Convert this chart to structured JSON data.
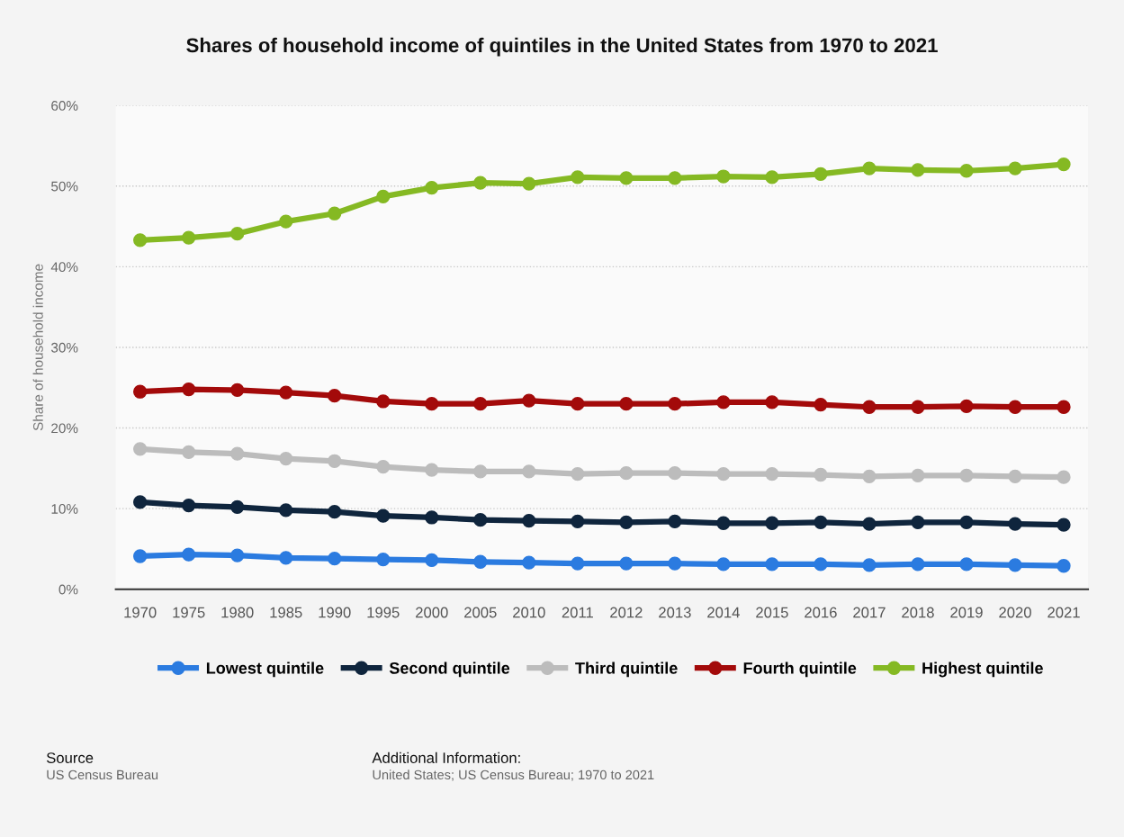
{
  "chart_data": {
    "type": "line",
    "title": "Shares of household income of quintiles in the United States from 1970 to 2021",
    "ylabel": "Share of household income",
    "categories": [
      "1970",
      "1975",
      "1980",
      "1985",
      "1990",
      "1995",
      "2000",
      "2005",
      "2010",
      "2011",
      "2012",
      "2013",
      "2014",
      "2015",
      "2016",
      "2017",
      "2018",
      "2019",
      "2020",
      "2021"
    ],
    "series": [
      {
        "name": "Lowest quintile",
        "color": "#2b7be0",
        "values": [
          4.1,
          4.3,
          4.2,
          3.9,
          3.8,
          3.7,
          3.6,
          3.4,
          3.3,
          3.2,
          3.2,
          3.2,
          3.1,
          3.1,
          3.1,
          3.0,
          3.1,
          3.1,
          3.0,
          2.9
        ]
      },
      {
        "name": "Second quintile",
        "color": "#0f253d",
        "values": [
          10.8,
          10.4,
          10.2,
          9.8,
          9.6,
          9.1,
          8.9,
          8.6,
          8.5,
          8.4,
          8.3,
          8.4,
          8.2,
          8.2,
          8.3,
          8.1,
          8.3,
          8.3,
          8.1,
          8.0
        ]
      },
      {
        "name": "Third quintile",
        "color": "#bcbcbc",
        "values": [
          17.4,
          17.0,
          16.8,
          16.2,
          15.9,
          15.2,
          14.8,
          14.6,
          14.6,
          14.3,
          14.4,
          14.4,
          14.3,
          14.3,
          14.2,
          14.0,
          14.1,
          14.1,
          14.0,
          13.9
        ]
      },
      {
        "name": "Fourth quintile",
        "color": "#a30a0a",
        "values": [
          24.5,
          24.8,
          24.7,
          24.4,
          24.0,
          23.3,
          23.0,
          23.0,
          23.4,
          23.0,
          23.0,
          23.0,
          23.2,
          23.2,
          22.9,
          22.6,
          22.6,
          22.7,
          22.6,
          22.6
        ]
      },
      {
        "name": "Highest quintile",
        "color": "#85b923",
        "values": [
          43.3,
          43.6,
          44.1,
          45.6,
          46.6,
          48.7,
          49.8,
          50.4,
          50.3,
          51.1,
          51.0,
          51.0,
          51.2,
          51.1,
          51.5,
          52.2,
          52.0,
          51.9,
          52.2,
          52.7
        ]
      }
    ],
    "ylim": [
      0,
      60
    ],
    "yticks": [
      {
        "value": 0,
        "label": "0%"
      },
      {
        "value": 10,
        "label": "10%"
      },
      {
        "value": 20,
        "label": "20%"
      },
      {
        "value": 30,
        "label": "30%"
      },
      {
        "value": 40,
        "label": "40%"
      },
      {
        "value": 50,
        "label": "50%"
      },
      {
        "value": 60,
        "label": "60%"
      }
    ],
    "grid": "y",
    "legend": "bottom",
    "marker": "circle",
    "line_style": "solid",
    "annotations": [
      "Source",
      "US Census Bureau",
      "Additional Information:",
      "United States; US Census Bureau; 1970 to 2021"
    ]
  }
}
